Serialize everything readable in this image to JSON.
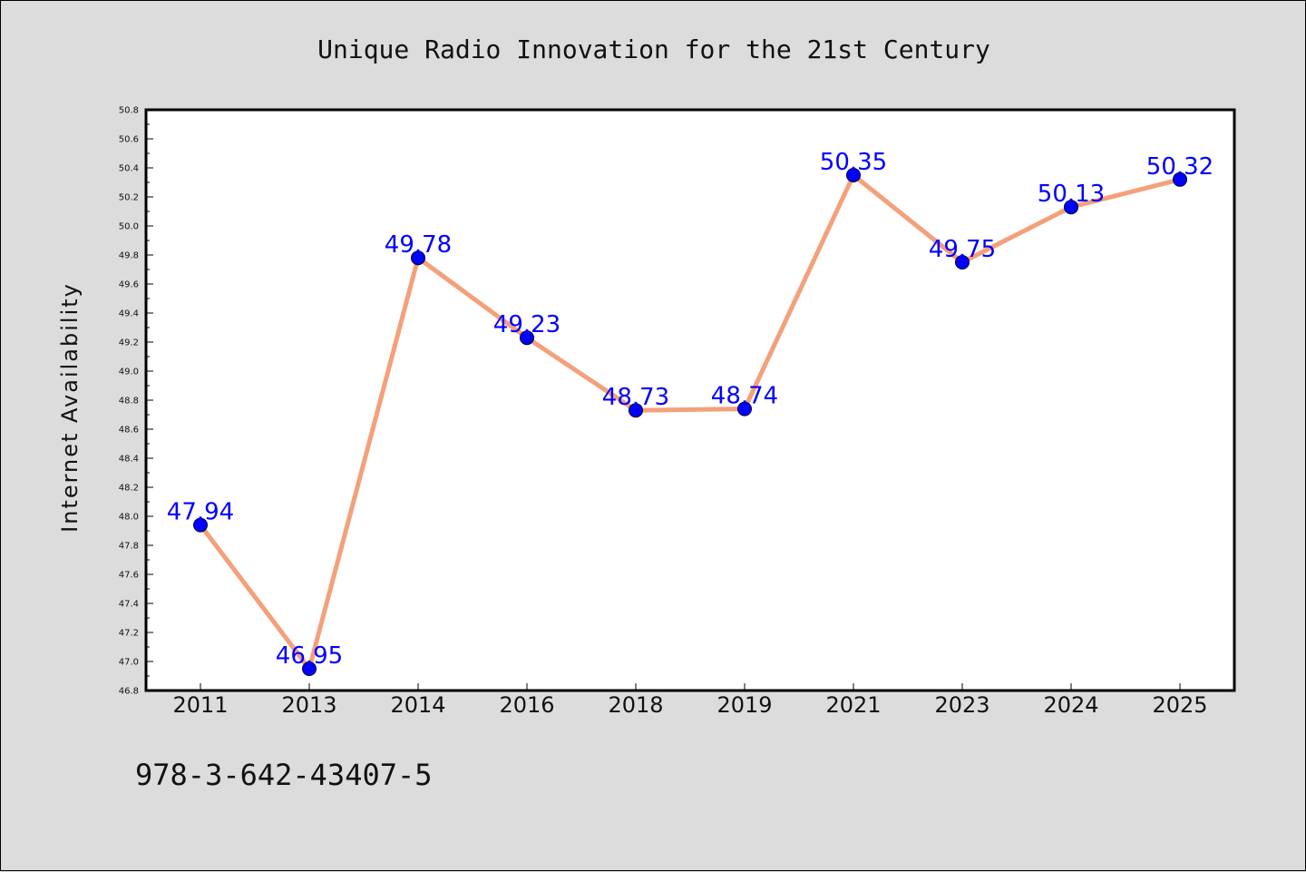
{
  "colors": {
    "background": "#dcdcdc",
    "plot_area": "#ffffff",
    "line": "#f4a07a",
    "marker": "#0000ff",
    "data_label": "#0000ff"
  },
  "footer_text": "978-3-642-43407-5",
  "chart_data": {
    "type": "line",
    "title": "Unique Radio Innovation for the 21st Century",
    "xlabel": "",
    "ylabel": "Internet Availability",
    "categories": [
      "2011",
      "2013",
      "2014",
      "2016",
      "2018",
      "2019",
      "2021",
      "2023",
      "2024",
      "2025"
    ],
    "series": [
      {
        "values": [
          47.94,
          46.95,
          49.78,
          49.23,
          48.73,
          48.74,
          50.35,
          49.75,
          50.13,
          50.32
        ],
        "labels": [
          "47.94",
          "46.95",
          "49.78",
          "49.23",
          "48.73",
          "48.74",
          "50.35",
          "49.75",
          "50.13",
          "50.32"
        ]
      }
    ],
    "ylim": [
      46.8,
      50.8
    ],
    "yticks": [
      "46.8",
      "47.0",
      "47.2",
      "47.4",
      "47.6",
      "47.8",
      "48.0",
      "48.2",
      "48.4",
      "48.6",
      "48.8",
      "49.0",
      "49.2",
      "49.4",
      "49.6",
      "49.8",
      "50.0",
      "50.2",
      "50.4",
      "50.6",
      "50.8"
    ],
    "grid": false,
    "legend": "none"
  }
}
